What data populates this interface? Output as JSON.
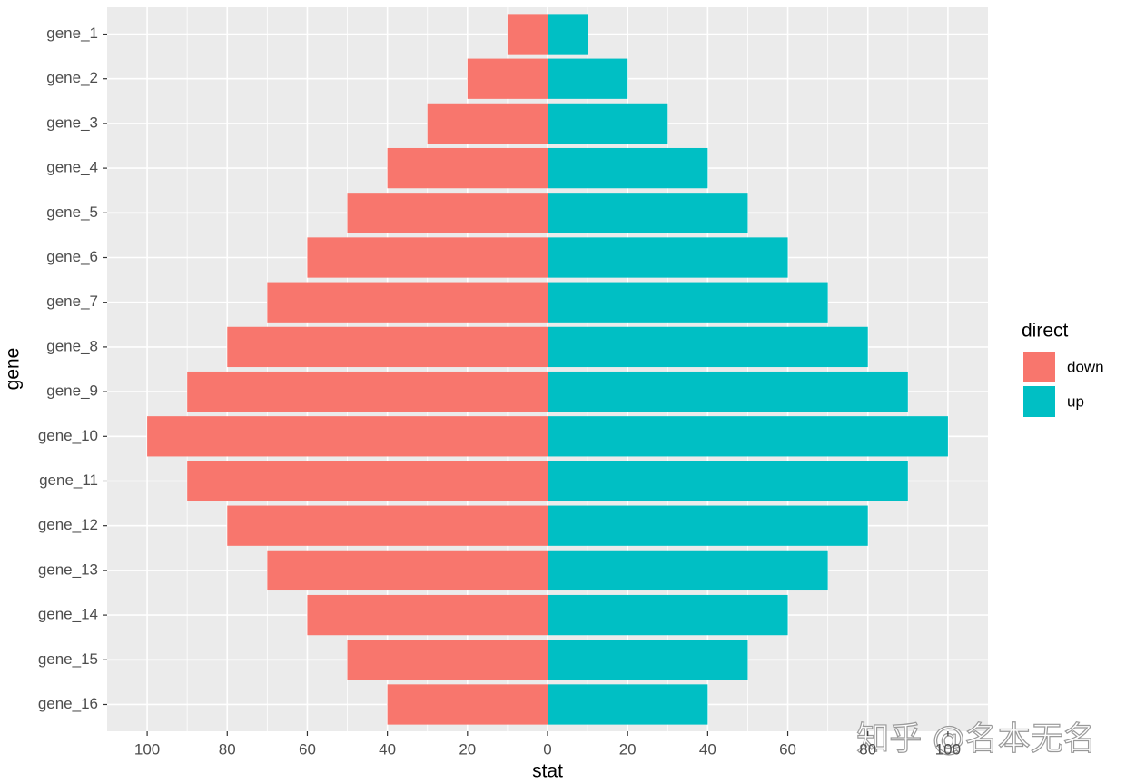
{
  "chart_data": {
    "type": "bar",
    "orientation": "horizontal",
    "x_label": "stat",
    "y_label": "gene",
    "categories": [
      "gene_1",
      "gene_2",
      "gene_3",
      "gene_4",
      "gene_5",
      "gene_6",
      "gene_7",
      "gene_8",
      "gene_9",
      "gene_10",
      "gene_11",
      "gene_12",
      "gene_13",
      "gene_14",
      "gene_15",
      "gene_16"
    ],
    "series": [
      {
        "name": "down",
        "color": "#F8766D",
        "values": [
          -10,
          -20,
          -30,
          -40,
          -50,
          -60,
          -70,
          -80,
          -90,
          -100,
          -90,
          -80,
          -70,
          -60,
          -50,
          -40
        ]
      },
      {
        "name": "up",
        "color": "#00BFC4",
        "values": [
          10,
          20,
          30,
          40,
          50,
          60,
          70,
          80,
          90,
          100,
          90,
          80,
          70,
          60,
          50,
          40
        ]
      }
    ],
    "xlim": [
      -110,
      110
    ],
    "xticks": [
      {
        "value": -100,
        "label": "100"
      },
      {
        "value": -80,
        "label": "80"
      },
      {
        "value": -60,
        "label": "60"
      },
      {
        "value": -40,
        "label": "40"
      },
      {
        "value": -20,
        "label": "20"
      },
      0,
      20,
      40,
      60,
      80,
      100
    ],
    "grid": true,
    "legend_title": "direct",
    "legend_position": "right"
  },
  "watermark": "知乎 @名本无名"
}
